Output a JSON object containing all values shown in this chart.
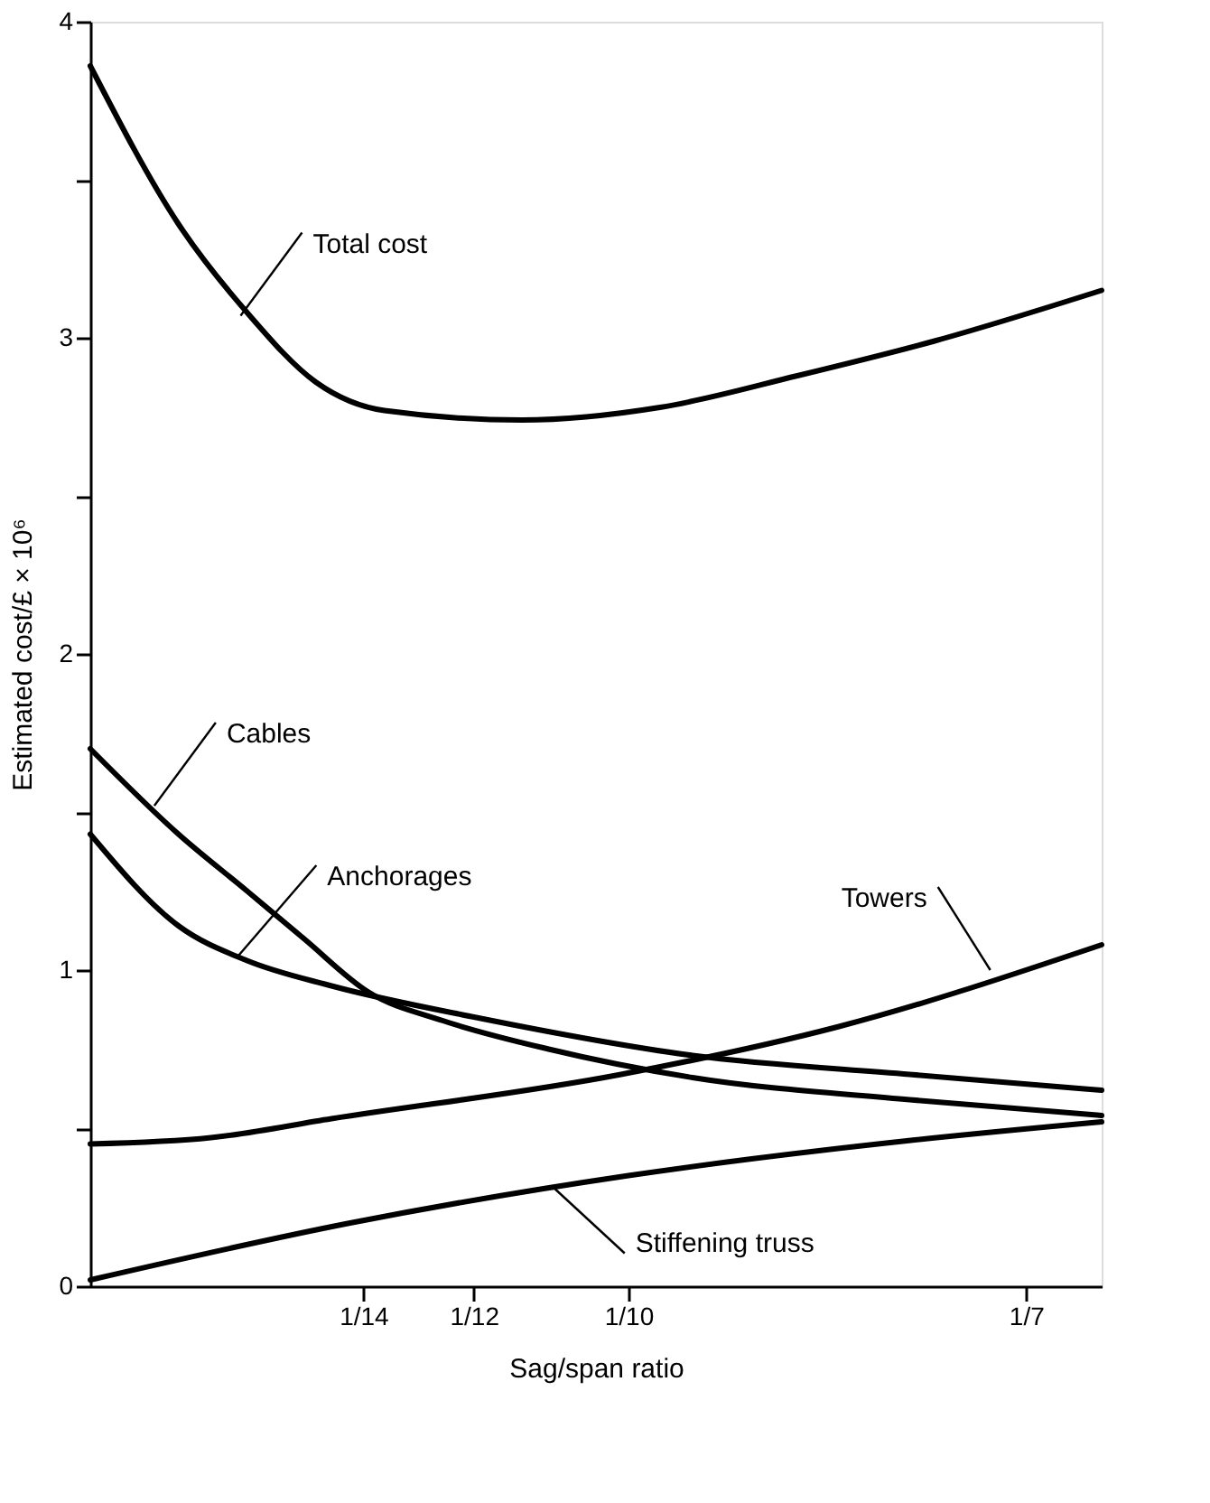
{
  "chart_data": {
    "type": "line",
    "xlabel": "Sag/span ratio",
    "ylabel": "Estimated cost/£ × 10⁶",
    "xlim": [
      0.042,
      0.151
    ],
    "xticks": [
      {
        "value": 0.0714286,
        "label": "1/14"
      },
      {
        "value": 0.0833333,
        "label": "1/12"
      },
      {
        "value": 0.1,
        "label": "1/10"
      },
      {
        "value": 0.1428571,
        "label": "1/7"
      }
    ],
    "ylim": [
      0,
      4
    ],
    "yticks": [
      0,
      {
        "value": 0.5,
        "label": null
      },
      1,
      {
        "value": 1.5,
        "label": null
      },
      2,
      {
        "value": 2.5,
        "label": null
      },
      3,
      {
        "value": 3.5,
        "label": null
      },
      4
    ],
    "grid": false,
    "marker": "none",
    "line_style": "solid",
    "series": [
      {
        "color": "#000000",
        "x": [
          0.042,
          0.0515,
          0.0589,
          0.0663,
          0.0737,
          0.0885,
          0.1034,
          0.1182,
          0.133,
          0.151
        ],
        "values": [
          3.86,
          3.36,
          3.08,
          2.86,
          2.77,
          2.74,
          2.78,
          2.88,
          2.99,
          3.15
        ]
      },
      {
        "color": "#000000",
        "x": [
          0.042,
          0.0515,
          0.0589,
          0.065,
          0.072,
          0.08,
          0.0914,
          0.1069,
          0.1303,
          0.151
        ],
        "values": [
          1.7,
          1.43,
          1.25,
          1.1,
          0.93,
          0.84,
          0.75,
          0.66,
          0.59,
          0.54
        ]
      },
      {
        "color": "#000000",
        "x": [
          0.042,
          0.0515,
          0.0589,
          0.068,
          0.0836,
          0.1069,
          0.1303,
          0.151
        ],
        "values": [
          1.43,
          1.14,
          1.03,
          0.95,
          0.85,
          0.73,
          0.67,
          0.62
        ]
      },
      {
        "color": "#000000",
        "x": [
          0.042,
          0.055,
          0.068,
          0.0992,
          0.1225,
          0.151
        ],
        "values": [
          0.45,
          0.47,
          0.53,
          0.67,
          0.82,
          1.08
        ]
      },
      {
        "color": "#000000",
        "x": [
          0.042,
          0.07,
          0.1,
          0.13,
          0.151
        ],
        "values": [
          0.02,
          0.2,
          0.35,
          0.46,
          0.52
        ]
      }
    ],
    "annotations": [
      {
        "text": "Total cost",
        "x": 0.0582,
        "y": 3.07
      },
      {
        "text": "Cables",
        "x": 0.0489,
        "y": 1.52
      },
      {
        "text": "Anchorages",
        "x": 0.0578,
        "y": 1.04
      },
      {
        "text": "Towers",
        "x": 0.139,
        "y": 1.0
      },
      {
        "text": "Stiffening truss",
        "x": 0.092,
        "y": 0.31
      }
    ]
  }
}
